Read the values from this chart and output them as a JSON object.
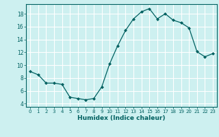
{
  "x": [
    0,
    1,
    2,
    3,
    4,
    5,
    6,
    7,
    8,
    9,
    10,
    11,
    12,
    13,
    14,
    15,
    16,
    17,
    18,
    19,
    20,
    21,
    22,
    23
  ],
  "y": [
    9,
    8.5,
    7.2,
    7.2,
    7,
    5,
    4.8,
    4.6,
    4.8,
    6.6,
    10.2,
    13,
    15.4,
    17.2,
    18.3,
    18.8,
    17.2,
    18.0,
    17.0,
    16.6,
    15.8,
    12.1,
    11.3,
    11.8
  ],
  "line_color": "#006060",
  "marker": "D",
  "marker_size": 2,
  "xlabel": "Humidex (Indice chaleur)",
  "ylim": [
    3.5,
    19.5
  ],
  "xlim": [
    -0.5,
    23.5
  ],
  "yticks": [
    4,
    6,
    8,
    10,
    12,
    14,
    16,
    18
  ],
  "xticks": [
    0,
    1,
    2,
    3,
    4,
    5,
    6,
    7,
    8,
    9,
    10,
    11,
    12,
    13,
    14,
    15,
    16,
    17,
    18,
    19,
    20,
    21,
    22,
    23
  ],
  "bg_color": "#cdf0f0",
  "grid_color": "#ffffff",
  "axes_color": "#006060"
}
